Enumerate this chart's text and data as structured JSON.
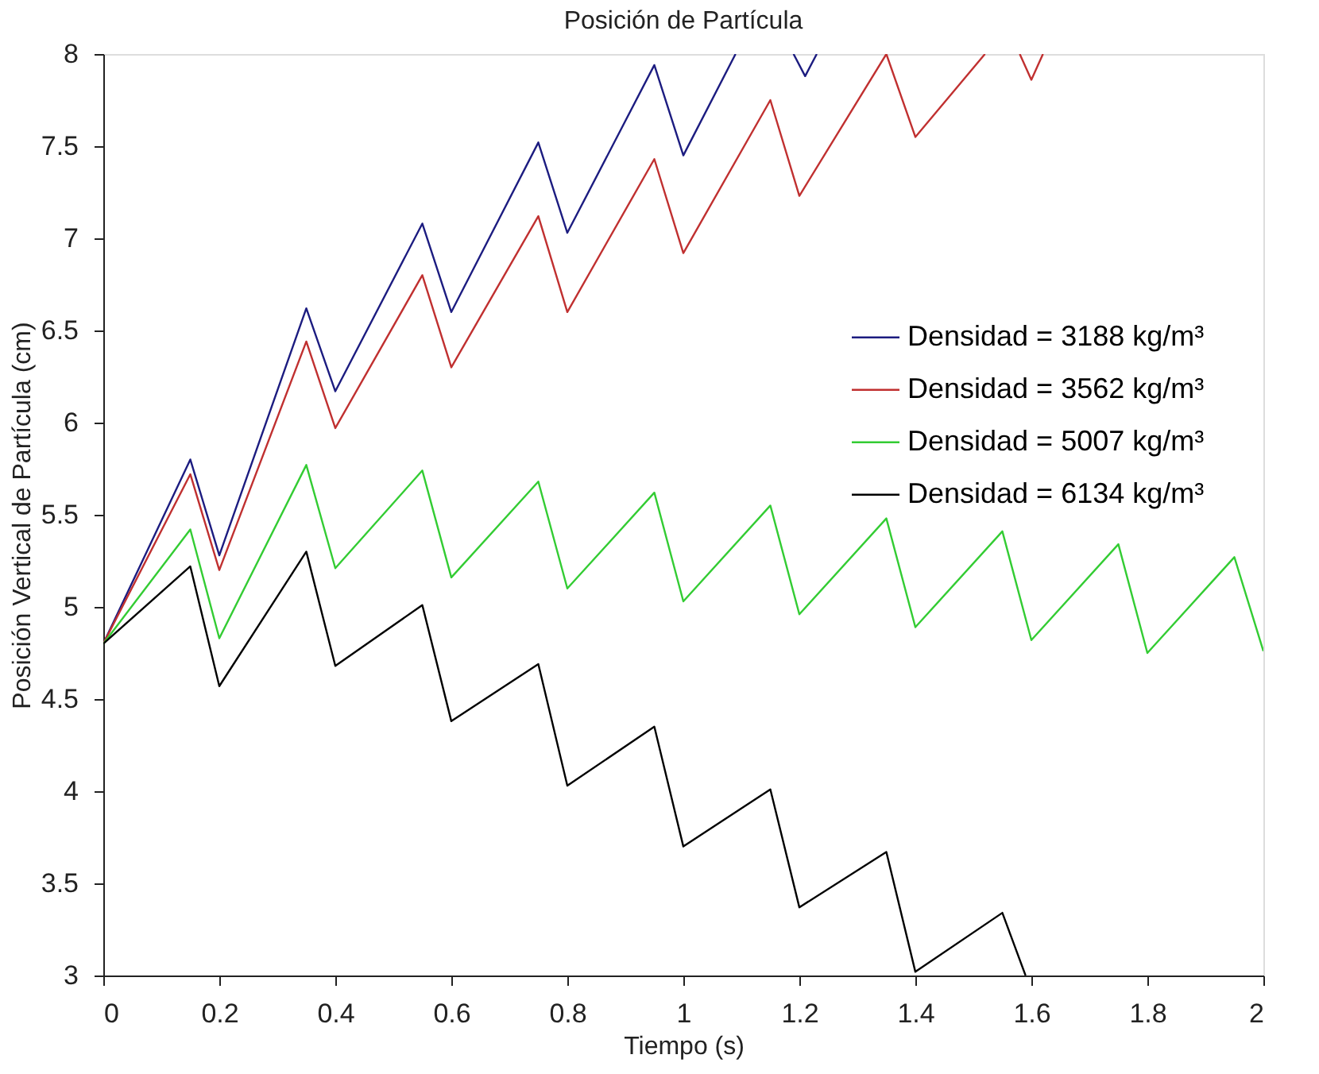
{
  "chart_data": {
    "type": "line",
    "title": "Posición de Partícula",
    "xlabel": "Tiempo (s)",
    "ylabel": "Posición Vertical de Partícula (cm)",
    "xlim": [
      0,
      2
    ],
    "xticks": [
      0,
      0.2,
      0.4,
      0.6,
      0.8,
      1,
      1.2,
      1.4,
      1.6,
      1.8,
      2
    ],
    "ylim": [
      3,
      8
    ],
    "yticks": [
      3,
      3.5,
      4,
      4.5,
      5,
      5.5,
      6,
      6.5,
      7,
      7.5,
      8
    ],
    "grid": false,
    "legend": "right",
    "marker": "none",
    "line_style": "solid",
    "series": [
      {
        "name": "Densidad = 3188 kg/m³",
        "color": "#1c1c80",
        "x": [
          0,
          0.15,
          0.2,
          0.35,
          0.4,
          0.55,
          0.6,
          0.75,
          0.8,
          0.95,
          1.0,
          1.09,
          1.14,
          1.19,
          1.21,
          1.23
        ],
        "values": [
          4.8,
          5.8,
          5.28,
          6.62,
          6.17,
          7.08,
          6.6,
          7.52,
          7.03,
          7.94,
          7.45,
          8,
          null,
          8,
          7.88,
          8
        ]
      },
      {
        "name": "Densidad = 3562 kg/m³",
        "color": "#c03030",
        "x": [
          0,
          0.15,
          0.2,
          0.35,
          0.4,
          0.55,
          0.6,
          0.75,
          0.8,
          0.95,
          1.0,
          1.15,
          1.2,
          1.35,
          1.4,
          1.52,
          1.55,
          1.58,
          1.6,
          1.62
        ],
        "values": [
          4.8,
          5.72,
          5.2,
          6.44,
          5.97,
          6.8,
          6.3,
          7.12,
          6.6,
          7.43,
          6.92,
          7.75,
          7.23,
          8,
          7.55,
          8,
          null,
          8,
          7.86,
          8
        ]
      },
      {
        "name": "Densidad = 5007 kg/m³",
        "color": "#33cc33",
        "x": [
          0,
          0.15,
          0.2,
          0.35,
          0.4,
          0.55,
          0.6,
          0.75,
          0.8,
          0.95,
          1.0,
          1.15,
          1.2,
          1.35,
          1.4,
          1.55,
          1.6,
          1.75,
          1.8,
          1.95,
          2.0
        ],
        "values": [
          4.8,
          5.42,
          4.83,
          5.77,
          5.21,
          5.74,
          5.16,
          5.68,
          5.1,
          5.62,
          5.03,
          5.55,
          4.96,
          5.48,
          4.89,
          5.41,
          4.82,
          5.34,
          4.75,
          5.27,
          4.76
        ]
      },
      {
        "name": "Densidad = 6134 kg/m³",
        "color": "#000000",
        "x": [
          0,
          0.15,
          0.2,
          0.35,
          0.4,
          0.55,
          0.6,
          0.75,
          0.8,
          0.95,
          1.0,
          1.15,
          1.2,
          1.35,
          1.4,
          1.55,
          1.59
        ],
        "values": [
          4.8,
          5.22,
          4.57,
          5.3,
          4.68,
          5.01,
          4.38,
          4.69,
          4.03,
          4.35,
          3.7,
          4.01,
          3.37,
          3.67,
          3.02,
          3.34,
          3
        ]
      }
    ]
  }
}
